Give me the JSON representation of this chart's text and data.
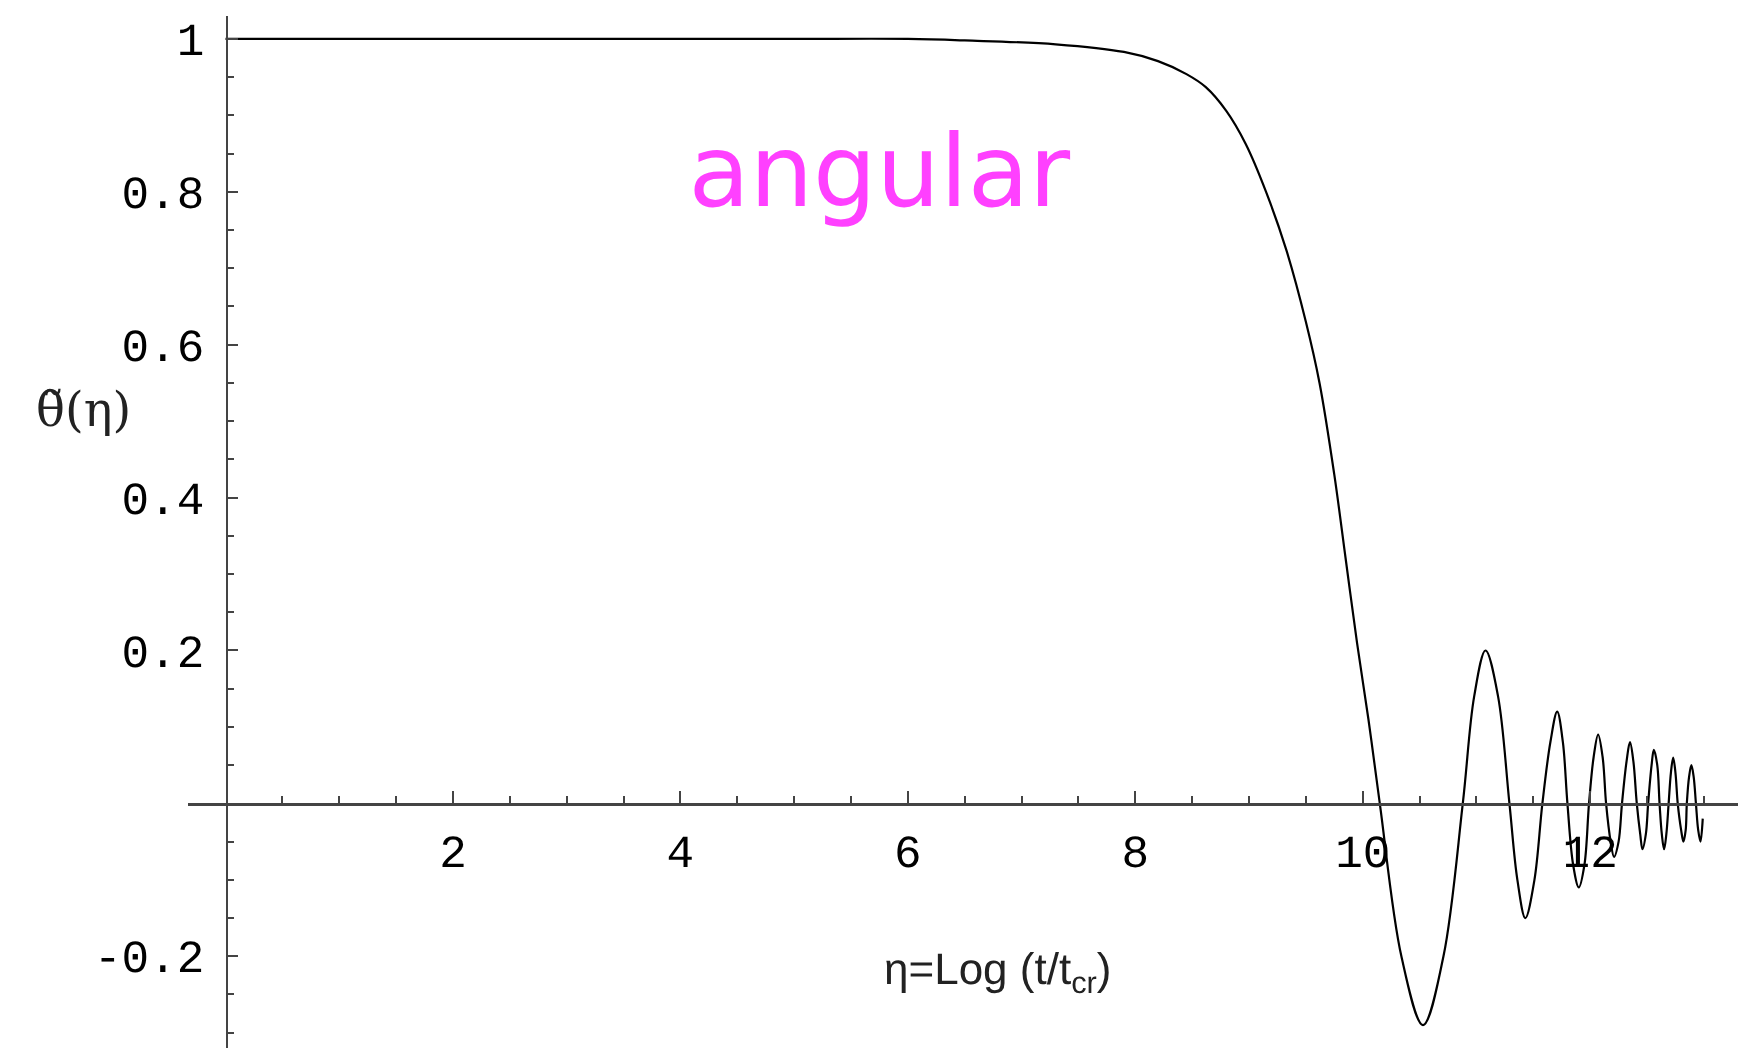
{
  "chart_data": {
    "type": "line",
    "title": "angular",
    "xlabel": "η=Log (t/t$_{cr}$)",
    "ylabel": "θ̃(η)",
    "line_style": "solid",
    "x": [
      0,
      1,
      2,
      3,
      4,
      5,
      6,
      6.5,
      7.3,
      7.9,
      8.2,
      8.45,
      8.62,
      8.8,
      8.97,
      9.15,
      9.33,
      9.5,
      9.62,
      9.75,
      9.85,
      9.95,
      10.05,
      10.15,
      10.34,
      10.53,
      10.71,
      10.88,
      10.98,
      11.08,
      11.19,
      11.29,
      11.36,
      11.43,
      11.51,
      11.58,
      11.65,
      11.71,
      11.76,
      11.8,
      11.85,
      11.9,
      11.95,
      11.99,
      12.03,
      12.07,
      12.11,
      12.14,
      12.18,
      12.21,
      12.25,
      12.28,
      12.32,
      12.35,
      12.38,
      12.41,
      12.44,
      12.46,
      12.49,
      12.51,
      12.54,
      12.56,
      12.59,
      12.61,
      12.63,
      12.65,
      12.67,
      12.69,
      12.71,
      12.73,
      12.75,
      12.77,
      12.8,
      12.82,
      12.84,
      12.85,
      12.87,
      12.89,
      12.91,
      12.93,
      12.95,
      12.97,
      12.99
    ],
    "series": [
      {
        "color": "#000000",
        "values": [
          1,
          1,
          1,
          1,
          1,
          1,
          1,
          0.998,
          0.993,
          0.983,
          0.971,
          0.954,
          0.937,
          0.906,
          0.863,
          0.8,
          0.723,
          0.63,
          0.55,
          0.43,
          0.32,
          0.21,
          0.11,
          0,
          -0.2,
          -0.29,
          -0.2,
          0,
          0.14,
          0.2,
          0.14,
          0,
          -0.1,
          -0.15,
          -0.1,
          0,
          0.08,
          0.12,
          0.08,
          0,
          -0.08,
          -0.11,
          -0.08,
          0,
          0.06,
          0.09,
          0.06,
          0,
          -0.05,
          -0.07,
          -0.05,
          0,
          0.055,
          0.08,
          0.055,
          0,
          -0.04,
          -0.06,
          -0.04,
          0,
          0.05,
          0.07,
          0.05,
          0,
          -0.04,
          -0.06,
          -0.04,
          0,
          0.04,
          0.06,
          0.04,
          0,
          -0.035,
          -0.05,
          -0.035,
          0,
          0.035,
          0.05,
          0.035,
          0,
          -0.035,
          -0.05,
          -0.02
        ]
      }
    ],
    "xlim": [
      -0.33,
      13.3
    ],
    "ylim": [
      -0.32,
      1.03
    ],
    "xticks": [
      {
        "value": 0.5,
        "label": null
      },
      {
        "value": 1,
        "label": null
      },
      {
        "value": 1.5,
        "label": null
      },
      2,
      {
        "value": 2.5,
        "label": null
      },
      {
        "value": 3,
        "label": null
      },
      {
        "value": 3.5,
        "label": null
      },
      4,
      {
        "value": 4.5,
        "label": null
      },
      {
        "value": 5,
        "label": null
      },
      {
        "value": 5.5,
        "label": null
      },
      6,
      {
        "value": 6.5,
        "label": null
      },
      {
        "value": 7,
        "label": null
      },
      {
        "value": 7.5,
        "label": null
      },
      8,
      {
        "value": 8.5,
        "label": null
      },
      {
        "value": 9,
        "label": null
      },
      {
        "value": 9.5,
        "label": null
      },
      10,
      {
        "value": 10.5,
        "label": null
      },
      {
        "value": 11,
        "label": null
      },
      {
        "value": 11.5,
        "label": null
      },
      12,
      {
        "value": 12.5,
        "label": null
      },
      {
        "value": 13,
        "label": null
      }
    ],
    "yticks": [
      {
        "value": -0.3,
        "label": null
      },
      {
        "value": -0.25,
        "label": null
      },
      -0.2,
      {
        "value": -0.15,
        "label": null
      },
      {
        "value": -0.1,
        "label": null
      },
      {
        "value": -0.05,
        "label": null
      },
      {
        "value": 0.05,
        "label": null
      },
      {
        "value": 0.1,
        "label": null
      },
      {
        "value": 0.15,
        "label": null
      },
      0.2,
      {
        "value": 0.25,
        "label": null
      },
      {
        "value": 0.3,
        "label": null
      },
      {
        "value": 0.35,
        "label": null
      },
      0.4,
      {
        "value": 0.45,
        "label": null
      },
      {
        "value": 0.5,
        "label": null
      },
      {
        "value": 0.55,
        "label": null
      },
      0.6,
      {
        "value": 0.65,
        "label": null
      },
      {
        "value": 0.7,
        "label": null
      },
      {
        "value": 0.75,
        "label": null
      },
      0.8,
      {
        "value": 0.85,
        "label": null
      },
      {
        "value": 0.9,
        "label": null
      },
      {
        "value": 0.95,
        "label": null
      },
      1
    ]
  }
}
